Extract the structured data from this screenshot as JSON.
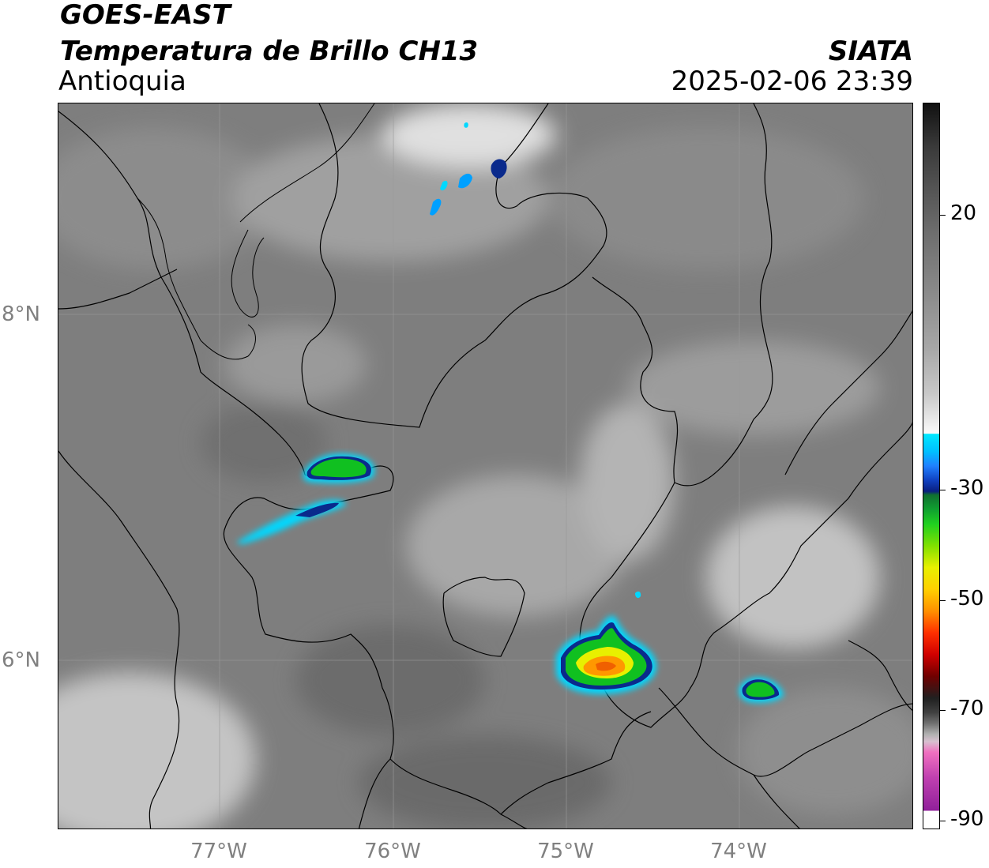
{
  "header": {
    "satellite": "GOES-EAST",
    "product": "Temperatura de Brillo CH13",
    "region": "Antioquia",
    "source": "SIATA",
    "datetime": "2025-02-06 23:39"
  },
  "map": {
    "lat_labels": [
      "8°N",
      "6°N"
    ],
    "lon_labels": [
      "77°W",
      "76°W",
      "75°W",
      "74°W"
    ],
    "gridlines": true
  },
  "colorbar": {
    "tick_labels": [
      "20",
      "-30",
      "-50",
      "-70",
      "-90"
    ],
    "colors": {
      "warm_dark": "#1a1a1a",
      "mid_gray": "#8a8a8a",
      "light": "#f4f4f4",
      "cyan": "#00e0ff",
      "blue": "#0a2a8c",
      "green": "#10c020",
      "yellow": "#f0f000",
      "orange": "#ff8800",
      "red": "#e00000",
      "dark_red": "#600000",
      "pink": "#e060c0",
      "purple": "#8a1a8a"
    }
  }
}
